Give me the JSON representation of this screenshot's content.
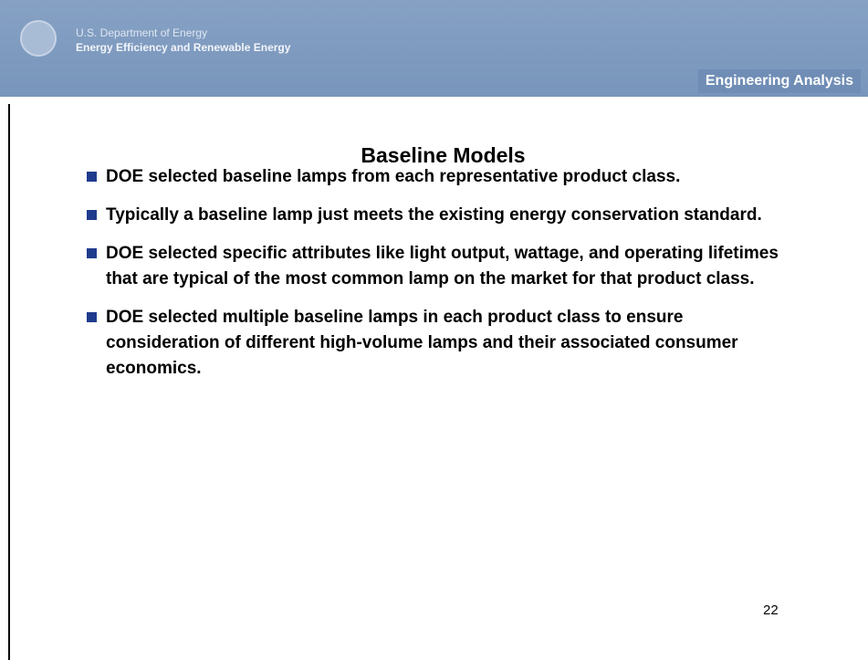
{
  "header": {
    "org_line1": "U.S. Department of Energy",
    "org_line2": "Energy Efficiency and Renewable Energy",
    "section": "Engineering Analysis"
  },
  "title": "Baseline Models",
  "bullets": [
    "DOE selected baseline lamps from each representative product class.",
    "Typically a baseline lamp just meets the existing energy conservation standard.",
    "DOE selected specific attributes like light output, wattage, and operating lifetimes that are typical of the most common lamp on the market for that product class.",
    "DOE selected multiple baseline lamps in each product class to ensure consideration of different high-volume lamps and their associated consumer economics."
  ],
  "page_number": "22"
}
